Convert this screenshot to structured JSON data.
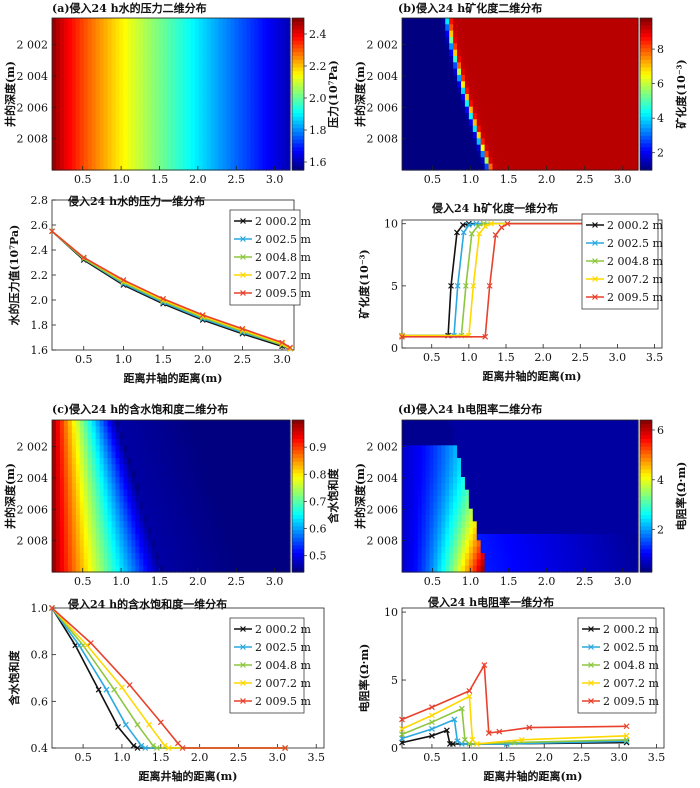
{
  "chart_data": [
    {
      "id": "a",
      "type": "heatmap",
      "title": "(a)侵入24 h水的压力二维分布",
      "ylabel": "井的深度(m)",
      "colorbar_label": "压力(10⁷Pa)",
      "colorbar_ticks": [
        "2.4",
        "2.2",
        "2.0",
        "1.8",
        "1.6"
      ],
      "colorbar_range": [
        1.55,
        2.5
      ],
      "xticks": [
        "0.5",
        "1.0",
        "1.5",
        "2.0",
        "2.5",
        "3.0"
      ],
      "yticks": [
        "2 002",
        "2 004",
        "2 006",
        "2 008"
      ],
      "xlim": [
        0.1,
        3.2
      ],
      "ylim": [
        2000.3,
        2010
      ],
      "colormap": "jet",
      "field": {
        "kind": "radial_decay",
        "r_pressure_from": 2.5,
        "r_pressure_to": 1.6
      }
    },
    {
      "id": "b",
      "type": "heatmap",
      "title": "(b)侵入24 h矿化度二维分布",
      "ylabel": "井的深度(m)",
      "colorbar_label": "矿化度(10⁻³)",
      "colorbar_ticks": [
        "8",
        "6",
        "4",
        "2"
      ],
      "colorbar_range": [
        1,
        9.8
      ],
      "xticks": [
        "0.5",
        "1.0",
        "1.5",
        "2.0",
        "2.5",
        "3.0"
      ],
      "yticks": [
        "2 002",
        "2 004",
        "2 006",
        "2 008"
      ],
      "xlim": [
        0.1,
        3.2
      ],
      "ylim": [
        2000.3,
        2010
      ],
      "colormap": "jet",
      "field": {
        "kind": "front",
        "front_top_x": 0.7,
        "front_bottom_x": 1.25,
        "low": 1.0,
        "high": 9.3
      }
    },
    {
      "id": "a_line",
      "type": "line",
      "title": "侵入24 h水的压力一维分布",
      "xlabel": "距离井轴的距离(m)",
      "ylabel": "水的压力值(10⁷Pa)",
      "xticks": [
        "0.5",
        "1.0",
        "1.5",
        "2.0",
        "2.5",
        "3.0"
      ],
      "yticks": [
        "2.8",
        "2.6",
        "2.4",
        "2.2",
        "2.0",
        "1.8",
        "1.6"
      ],
      "xlim": [
        0.1,
        3.15
      ],
      "ylim": [
        1.6,
        2.8
      ],
      "series": [
        {
          "name": "2 000.2 m",
          "color": "#111111",
          "marker": "x",
          "x": [
            0.1,
            0.5,
            1.0,
            1.5,
            2.0,
            2.5,
            3.0,
            3.1
          ],
          "y": [
            2.55,
            2.32,
            2.12,
            1.97,
            1.84,
            1.73,
            1.63,
            1.61
          ]
        },
        {
          "name": "2 002.5 m",
          "color": "#2aa9e0",
          "marker": "x",
          "x": [
            0.1,
            0.5,
            1.0,
            1.5,
            2.0,
            2.5,
            3.0,
            3.1
          ],
          "y": [
            2.55,
            2.33,
            2.13,
            1.98,
            1.85,
            1.74,
            1.64,
            1.61
          ]
        },
        {
          "name": "2 004.8 m",
          "color": "#8dc63f",
          "marker": "x",
          "x": [
            0.1,
            0.5,
            1.0,
            1.5,
            2.0,
            2.5,
            3.0,
            3.1
          ],
          "y": [
            2.55,
            2.33,
            2.14,
            1.99,
            1.86,
            1.75,
            1.64,
            1.61
          ]
        },
        {
          "name": "2 007.2 m",
          "color": "#ffd800",
          "marker": "x",
          "x": [
            0.1,
            0.5,
            1.0,
            1.5,
            2.0,
            2.5,
            3.0,
            3.1
          ],
          "y": [
            2.55,
            2.34,
            2.15,
            2.0,
            1.87,
            1.76,
            1.65,
            1.61
          ]
        },
        {
          "name": "2 009.5 m",
          "color": "#e8412c",
          "marker": "x",
          "x": [
            0.1,
            0.5,
            1.0,
            1.5,
            2.0,
            2.5,
            3.0,
            3.1
          ],
          "y": [
            2.55,
            2.34,
            2.16,
            2.01,
            1.88,
            1.77,
            1.66,
            1.62
          ]
        }
      ]
    },
    {
      "id": "b_line",
      "type": "line",
      "title": "侵入24 h矿化度一维分布",
      "xlabel": "距离井轴的距离(m)",
      "ylabel": "矿化度(10⁻³)",
      "xticks": [
        "0.5",
        "1.0",
        "1.5",
        "2.0",
        "2.5",
        "3.0",
        "3.5"
      ],
      "yticks": [
        "10",
        "5",
        "0"
      ],
      "xlim": [
        0.1,
        3.6
      ],
      "ylim": [
        0,
        10.3
      ],
      "series": [
        {
          "name": "2 000.2 m",
          "color": "#111111",
          "marker": "x",
          "x": [
            0.1,
            0.72,
            0.76,
            0.84,
            0.92,
            1.0,
            3.1
          ],
          "y": [
            1.0,
            1.0,
            5.0,
            9.3,
            9.9,
            10.0,
            10.0
          ]
        },
        {
          "name": "2 002.5 m",
          "color": "#2aa9e0",
          "marker": "x",
          "x": [
            0.1,
            0.8,
            0.85,
            0.93,
            1.0,
            1.1,
            3.1
          ],
          "y": [
            1.0,
            1.0,
            5.0,
            9.3,
            9.9,
            10.0,
            10.0
          ]
        },
        {
          "name": "2 004.8 m",
          "color": "#8dc63f",
          "marker": "x",
          "x": [
            0.1,
            0.9,
            0.96,
            1.04,
            1.12,
            1.2,
            3.1
          ],
          "y": [
            1.0,
            1.0,
            5.0,
            9.2,
            9.8,
            10.0,
            10.0
          ]
        },
        {
          "name": "2 007.2 m",
          "color": "#ffd800",
          "marker": "x",
          "x": [
            0.1,
            1.0,
            1.06,
            1.14,
            1.22,
            1.3,
            3.1
          ],
          "y": [
            1.0,
            1.0,
            5.0,
            9.2,
            9.8,
            10.0,
            10.0
          ]
        },
        {
          "name": "2 009.5 m",
          "color": "#e8412c",
          "marker": "x",
          "x": [
            0.1,
            1.22,
            1.28,
            1.36,
            1.44,
            1.52,
            3.1
          ],
          "y": [
            0.9,
            0.9,
            5.0,
            9.1,
            9.7,
            10.0,
            10.0
          ]
        }
      ]
    },
    {
      "id": "c",
      "type": "heatmap",
      "title": "(c)侵入24 h的含水饱和度二维分布",
      "ylabel": "井的深度(m)",
      "colorbar_label": "含水饱和度",
      "colorbar_ticks": [
        "0.9",
        "0.8",
        "0.7",
        "0.6",
        "0.5"
      ],
      "colorbar_range": [
        0.44,
        1.0
      ],
      "xticks": [
        "0.5",
        "1.0",
        "1.5",
        "2.0",
        "2.5",
        "3.0"
      ],
      "yticks": [
        "2 002",
        "2 004",
        "2 006",
        "2 008"
      ],
      "xlim": [
        0.1,
        3.2
      ],
      "ylim": [
        2000.3,
        2010
      ],
      "colormap": "jet",
      "field": {
        "kind": "slope",
        "edge_top_x": 0.95,
        "edge_bottom_x": 1.55,
        "min": 0.44,
        "max": 1.0
      }
    },
    {
      "id": "d",
      "type": "heatmap",
      "title": "(d)侵入24 h电阻率二维分布",
      "ylabel": "井的深度(m)",
      "colorbar_label": "电阻率(Ω·m)",
      "colorbar_ticks": [
        "6",
        "4",
        "2"
      ],
      "colorbar_range": [
        0.3,
        6.4
      ],
      "xticks": [
        "0.5",
        "1.0",
        "1.5",
        "2.0",
        "2.5",
        "3.0"
      ],
      "yticks": [
        "2 002",
        "2 004",
        "2 006",
        "2 008"
      ],
      "xlim": [
        0.1,
        3.2
      ],
      "ylim": [
        2000.3,
        2010
      ],
      "colormap": "jet",
      "field": {
        "kind": "wedge",
        "apex_x": 0.6,
        "front_top_x": 0.72,
        "front_bottom_x": 1.22,
        "base": 0.4
      }
    },
    {
      "id": "c_line",
      "type": "line",
      "title": "侵入24 h的含水饱和度一维分布",
      "xlabel": "距离井轴的距离(m)",
      "ylabel": "含水饱和度",
      "xticks": [
        "0.5",
        "1.0",
        "1.5",
        "2.0",
        "2.5",
        "3.0",
        "3.5"
      ],
      "yticks": [
        "1.0",
        "0.8",
        "0.6",
        "0.4"
      ],
      "xlim": [
        0.1,
        3.6
      ],
      "ylim": [
        0.4,
        1.0
      ],
      "series": [
        {
          "name": "2 000.2 m",
          "color": "#111111",
          "marker": "x",
          "x": [
            0.1,
            0.4,
            0.7,
            0.95,
            1.15,
            1.2,
            3.1
          ],
          "y": [
            1.0,
            0.84,
            0.65,
            0.49,
            0.41,
            0.4,
            0.4
          ]
        },
        {
          "name": "2 002.5 m",
          "color": "#2aa9e0",
          "marker": "x",
          "x": [
            0.1,
            0.45,
            0.8,
            1.05,
            1.25,
            1.3,
            3.1
          ],
          "y": [
            1.0,
            0.84,
            0.65,
            0.5,
            0.41,
            0.4,
            0.4
          ]
        },
        {
          "name": "2 004.8 m",
          "color": "#8dc63f",
          "marker": "x",
          "x": [
            0.1,
            0.5,
            0.9,
            1.2,
            1.4,
            1.45,
            3.1
          ],
          "y": [
            1.0,
            0.84,
            0.65,
            0.5,
            0.41,
            0.4,
            0.4
          ]
        },
        {
          "name": "2 007.2 m",
          "color": "#ffd800",
          "marker": "x",
          "x": [
            0.1,
            0.55,
            1.0,
            1.35,
            1.55,
            1.6,
            3.1
          ],
          "y": [
            1.0,
            0.84,
            0.66,
            0.5,
            0.41,
            0.4,
            0.4
          ]
        },
        {
          "name": "2 009.5 m",
          "color": "#e8412c",
          "marker": "x",
          "x": [
            0.1,
            0.6,
            1.1,
            1.5,
            1.72,
            1.78,
            3.1
          ],
          "y": [
            1.0,
            0.85,
            0.67,
            0.51,
            0.42,
            0.4,
            0.4
          ]
        }
      ]
    },
    {
      "id": "d_line",
      "type": "line",
      "title": "侵入24 h电阻率一维分布",
      "xlabel": "距离井轴的距离(m)",
      "ylabel": "电阻率(Ω·m)",
      "xticks": [
        "0.5",
        "1.0",
        "1.5",
        "2.0",
        "2.5",
        "3.0",
        "3.5"
      ],
      "yticks": [
        "10",
        "5",
        "0"
      ],
      "xlim": [
        0.1,
        3.6
      ],
      "ylim": [
        0,
        10.3
      ],
      "series": [
        {
          "name": "2 000.2 m",
          "color": "#111111",
          "marker": "x",
          "x": [
            0.1,
            0.5,
            0.7,
            0.74,
            0.78,
            1.5,
            3.1
          ],
          "y": [
            0.4,
            0.9,
            1.3,
            0.3,
            0.3,
            0.3,
            0.4
          ]
        },
        {
          "name": "2 002.5 m",
          "color": "#2aa9e0",
          "marker": "x",
          "x": [
            0.1,
            0.5,
            0.8,
            0.84,
            0.9,
            1.5,
            3.1
          ],
          "y": [
            0.7,
            1.4,
            2.1,
            0.5,
            0.3,
            0.3,
            0.5
          ]
        },
        {
          "name": "2 004.8 m",
          "color": "#8dc63f",
          "marker": "x",
          "x": [
            0.1,
            0.5,
            0.9,
            0.94,
            1.0,
            1.6,
            3.1
          ],
          "y": [
            1.0,
            1.9,
            2.9,
            0.6,
            0.3,
            0.4,
            0.6
          ]
        },
        {
          "name": "2 007.2 m",
          "color": "#ffd800",
          "marker": "x",
          "x": [
            0.1,
            0.5,
            1.0,
            1.04,
            1.1,
            1.7,
            3.1
          ],
          "y": [
            1.4,
            2.4,
            3.8,
            0.6,
            0.3,
            0.6,
            0.9
          ]
        },
        {
          "name": "2 009.5 m",
          "color": "#e8412c",
          "marker": "x",
          "x": [
            0.1,
            0.5,
            1.0,
            1.2,
            1.26,
            1.4,
            1.8,
            3.1
          ],
          "y": [
            2.1,
            3.0,
            4.2,
            6.1,
            1.1,
            1.2,
            1.5,
            1.6
          ]
        }
      ]
    }
  ]
}
